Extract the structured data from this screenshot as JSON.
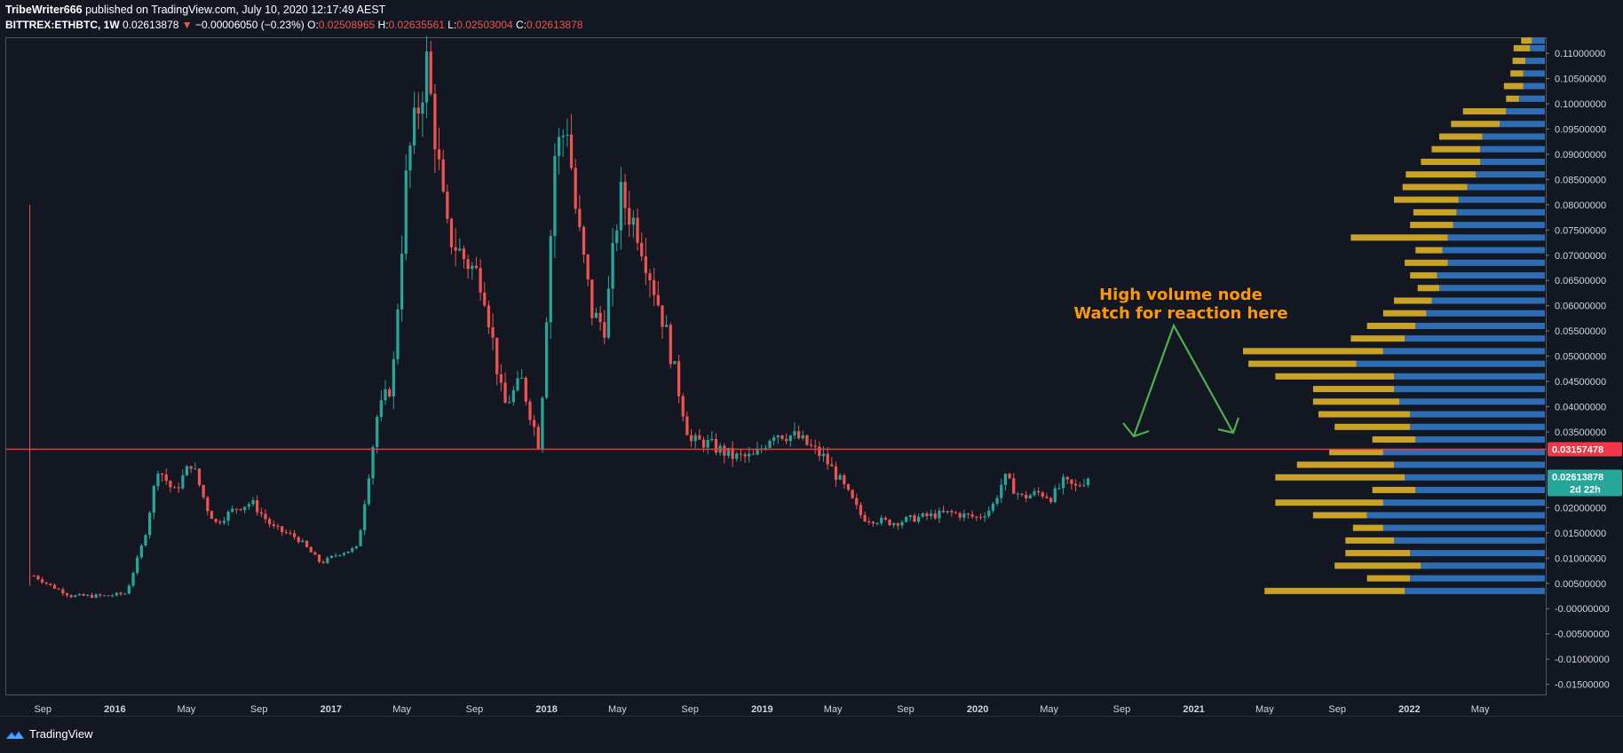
{
  "header": {
    "author": "TribeWriter666",
    "published": "published on TradingView.com, July 10, 2020 12:17:49 AEST",
    "symbol": "BITTREX:ETHBTC, 1W",
    "last": "0.02613878",
    "change": "−0.00006050 (−0.23%)",
    "o_label": "O:",
    "o_value": "0.02508965",
    "h_label": "H:",
    "h_value": "0.02635561",
    "l_label": "L:",
    "l_value": "0.02503004",
    "c_label": "C:",
    "c_value": "0.02613878"
  },
  "annotation": {
    "line1": "High volume node",
    "line2": "Watch for reaction here"
  },
  "footer": {
    "brand": "TradingView"
  },
  "colors": {
    "background": "#131722",
    "up": "#26a69a",
    "down": "#ef5350",
    "hline": "#f23645",
    "vp_up": "#2962ff",
    "vp_blue": "#2e6db4",
    "vp_gold": "#c9a227",
    "annotation": "#ff9800",
    "arrow": "#4caf50"
  },
  "chart_data": {
    "type": "candlestick",
    "y_axis": {
      "range": [
        -0.017,
        0.113
      ],
      "tick_labels": [
        "0.11000000",
        "0.10500000",
        "0.10000000",
        "0.09500000",
        "0.09000000",
        "0.08500000",
        "0.08000000",
        "0.07500000",
        "0.07000000",
        "0.06500000",
        "0.06000000",
        "0.05500000",
        "0.05000000",
        "0.04500000",
        "0.04000000",
        "0.03500000",
        "0.02000000",
        "0.01500000",
        "0.01000000",
        "0.00500000",
        "-0.00000000",
        "-0.00500000",
        "-0.01000000",
        "-0.01500000"
      ],
      "tick_values": [
        0.11,
        0.105,
        0.1,
        0.095,
        0.09,
        0.085,
        0.08,
        0.075,
        0.07,
        0.065,
        0.06,
        0.055,
        0.05,
        0.045,
        0.04,
        0.035,
        0.02,
        0.015,
        0.01,
        0.005,
        0,
        -0.005,
        -0.01,
        -0.015
      ]
    },
    "x_axis": {
      "range": [
        "2015-07-01",
        "2022-08-20"
      ],
      "tick_labels": [
        "Sep",
        "2016",
        "May",
        "Sep",
        "2017",
        "May",
        "Sep",
        "2018",
        "May",
        "Sep",
        "2019",
        "May",
        "Sep",
        "2020",
        "May",
        "Sep",
        "2021",
        "May",
        "Sep",
        "2022",
        "May"
      ],
      "tick_dates": [
        "2015-09-01",
        "2016-01-01",
        "2016-05-01",
        "2016-09-01",
        "2017-01-01",
        "2017-05-01",
        "2017-09-01",
        "2018-01-01",
        "2018-05-01",
        "2018-09-01",
        "2019-01-01",
        "2019-05-01",
        "2019-09-01",
        "2020-01-01",
        "2020-05-01",
        "2020-09-01",
        "2021-01-01",
        "2021-05-01",
        "2021-09-01",
        "2022-01-01",
        "2022-05-01"
      ]
    },
    "horizontal_line": {
      "value": 0.03157478,
      "label": "0.03157478"
    },
    "current_price": {
      "value": 0.02613878,
      "label": "0.02613878",
      "countdown": "2d 22h"
    },
    "first_candle_spike": {
      "date": "2015-08-10",
      "high": 0.08,
      "low": 0.0045
    },
    "price_path": {
      "dates": [
        "2015-08-17",
        "2015-09-15",
        "2015-10-20",
        "2015-12-15",
        "2016-01-20",
        "2016-02-20",
        "2016-03-14",
        "2016-04-10",
        "2016-05-10",
        "2016-06-05",
        "2016-06-20",
        "2016-07-25",
        "2016-08-20",
        "2016-09-25",
        "2016-11-05",
        "2016-12-15",
        "2017-01-15",
        "2017-02-15",
        "2017-03-01",
        "2017-03-20",
        "2017-04-15",
        "2017-05-10",
        "2017-06-12",
        "2017-07-15",
        "2017-08-10",
        "2017-09-15",
        "2017-10-20",
        "2017-11-20",
        "2017-12-20",
        "2018-01-15",
        "2018-02-05",
        "2018-02-20",
        "2018-03-20",
        "2018-04-10",
        "2018-05-05",
        "2018-06-05",
        "2018-07-20",
        "2018-09-01",
        "2018-09-25",
        "2018-11-15",
        "2018-12-20",
        "2019-01-20",
        "2019-03-01",
        "2019-04-15",
        "2019-05-15",
        "2019-06-20",
        "2019-08-10",
        "2019-09-20",
        "2019-11-15",
        "2020-01-01",
        "2020-01-25",
        "2020-02-15",
        "2020-03-15",
        "2020-04-15",
        "2020-05-05",
        "2020-05-25",
        "2020-06-15",
        "2020-07-06"
      ],
      "closes": [
        0.0065,
        0.0045,
        0.0025,
        0.0025,
        0.003,
        0.014,
        0.028,
        0.023,
        0.029,
        0.02,
        0.017,
        0.02,
        0.021,
        0.016,
        0.014,
        0.009,
        0.011,
        0.012,
        0.023,
        0.038,
        0.045,
        0.088,
        0.108,
        0.075,
        0.07,
        0.065,
        0.04,
        0.045,
        0.032,
        0.09,
        0.096,
        0.078,
        0.058,
        0.056,
        0.082,
        0.075,
        0.056,
        0.033,
        0.033,
        0.03,
        0.03,
        0.035,
        0.034,
        0.03,
        0.025,
        0.018,
        0.017,
        0.018,
        0.019,
        0.018,
        0.02,
        0.026,
        0.022,
        0.023,
        0.022,
        0.025,
        0.024,
        0.0261
      ]
    },
    "volume_profile": {
      "levels": [
        0.1125,
        0.111,
        0.1085,
        0.106,
        0.1035,
        0.101,
        0.0985,
        0.096,
        0.0935,
        0.091,
        0.0885,
        0.086,
        0.0835,
        0.081,
        0.0785,
        0.076,
        0.0735,
        0.071,
        0.0685,
        0.066,
        0.0635,
        0.061,
        0.0585,
        0.056,
        0.0535,
        0.051,
        0.0485,
        0.046,
        0.0435,
        0.041,
        0.0385,
        0.036,
        0.0335,
        0.031,
        0.0285,
        0.026,
        0.0235,
        0.021,
        0.0185,
        0.016,
        0.0135,
        0.011,
        0.0085,
        0.006,
        0.0035
      ],
      "up_volume": [
        12,
        14,
        18,
        20,
        20,
        24,
        36,
        42,
        58,
        60,
        60,
        64,
        72,
        80,
        82,
        85,
        90,
        95,
        90,
        100,
        98,
        105,
        110,
        120,
        130,
        150,
        175,
        140,
        140,
        135,
        125,
        125,
        120,
        150,
        140,
        130,
        120,
        150,
        165,
        150,
        140,
        125,
        115,
        125,
        130
      ],
      "down_volume": [
        10,
        15,
        12,
        12,
        18,
        12,
        40,
        45,
        40,
        45,
        55,
        65,
        60,
        60,
        40,
        40,
        90,
        25,
        40,
        25,
        20,
        35,
        40,
        45,
        50,
        130,
        100,
        110,
        75,
        80,
        85,
        70,
        40,
        50,
        90,
        120,
        40,
        100,
        50,
        28,
        45,
        60,
        80,
        40,
        130
      ]
    }
  }
}
